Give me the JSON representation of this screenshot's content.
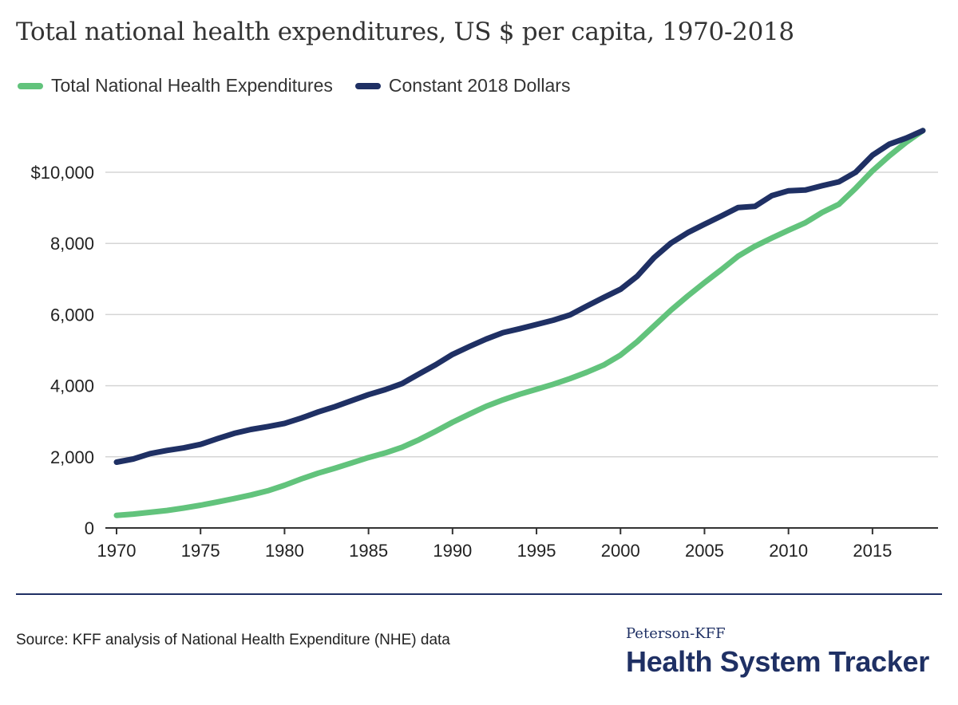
{
  "chart_data": {
    "type": "line",
    "title": "Total national health expenditures, US $ per capita, 1970-2018",
    "xlabel": "",
    "ylabel": "",
    "xlim": [
      1970,
      2018
    ],
    "ylim": [
      0,
      11200
    ],
    "yticks": [
      0,
      2000,
      4000,
      6000,
      8000,
      10000
    ],
    "ytick_labels": [
      "0",
      "2,000",
      "4,000",
      "6,000",
      "8,000",
      "$10,000"
    ],
    "xticks": [
      1970,
      1975,
      1980,
      1985,
      1990,
      1995,
      2000,
      2005,
      2010,
      2015
    ],
    "xtick_labels": [
      "1970",
      "1975",
      "1980",
      "1985",
      "1990",
      "1995",
      "2000",
      "2005",
      "2010",
      "2015"
    ],
    "grid": "horizontal",
    "legend": "top-left",
    "x": [
      1970,
      1971,
      1972,
      1973,
      1974,
      1975,
      1976,
      1977,
      1978,
      1979,
      1980,
      1981,
      1982,
      1983,
      1984,
      1985,
      1986,
      1987,
      1988,
      1989,
      1990,
      1991,
      1992,
      1993,
      1994,
      1995,
      1996,
      1997,
      1998,
      1999,
      2000,
      2001,
      2002,
      2003,
      2004,
      2005,
      2006,
      2007,
      2008,
      2009,
      2010,
      2011,
      2012,
      2013,
      2014,
      2015,
      2016,
      2017,
      2018
    ],
    "series": [
      {
        "name": "Total National Health Expenditures",
        "color": "#62c37c",
        "values": [
          355,
          390,
          440,
          490,
          560,
          640,
          730,
          825,
          925,
          1045,
          1200,
          1380,
          1540,
          1680,
          1830,
          1980,
          2110,
          2270,
          2480,
          2720,
          2970,
          3200,
          3420,
          3600,
          3760,
          3900,
          4040,
          4200,
          4380,
          4580,
          4860,
          5240,
          5680,
          6120,
          6520,
          6900,
          7260,
          7640,
          7920,
          8150,
          8370,
          8580,
          8870,
          9100,
          9550,
          10040,
          10460,
          10840,
          11170
        ]
      },
      {
        "name": "Constant 2018 Dollars",
        "color": "#1f3064",
        "values": [
          1850,
          1940,
          2090,
          2180,
          2250,
          2350,
          2510,
          2660,
          2770,
          2850,
          2940,
          3090,
          3260,
          3410,
          3580,
          3750,
          3890,
          4060,
          4330,
          4590,
          4880,
          5100,
          5310,
          5490,
          5600,
          5720,
          5840,
          5990,
          6240,
          6480,
          6710,
          7080,
          7600,
          8010,
          8300,
          8540,
          8770,
          9010,
          9040,
          9340,
          9480,
          9500,
          9620,
          9730,
          10000,
          10480,
          10790,
          10960,
          11170
        ]
      }
    ]
  },
  "source": "Source: KFF analysis of National Health Expenditure (NHE) data",
  "brand": {
    "top": "Peterson-KFF",
    "main": "Health System Tracker"
  },
  "colors": {
    "accent": "#1f3064",
    "secondary": "#62c37c",
    "grid": "#d5d5d5"
  }
}
